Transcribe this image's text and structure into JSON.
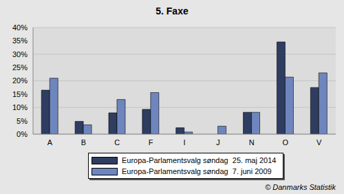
{
  "chart_data": {
    "type": "bar",
    "title": "5. Faxe",
    "categories": [
      "A",
      "B",
      "C",
      "F",
      "I",
      "J",
      "N",
      "O",
      "V"
    ],
    "series": [
      {
        "name": "Europa-Parlamentsvalg søndag  25. maj 2014",
        "color": "#2e3d60",
        "values": [
          16.5,
          4.8,
          8.0,
          9.3,
          2.4,
          null,
          8.2,
          34.6,
          17.5
        ]
      },
      {
        "name": "Europa-Parlamentsvalg søndag  7. juni 2009",
        "color": "#6e86bd",
        "values": [
          21.0,
          3.5,
          13.0,
          15.6,
          0.8,
          3.0,
          8.2,
          21.4,
          23.0
        ]
      }
    ],
    "ylim": [
      0,
      40
    ],
    "yticks": [
      {
        "value": 0,
        "label": "0%"
      },
      {
        "value": 5,
        "label": "5%"
      },
      {
        "value": 10,
        "label": "10%"
      },
      {
        "value": 15,
        "label": "15%"
      },
      {
        "value": 20,
        "label": "20%"
      },
      {
        "value": 25,
        "label": "25%"
      },
      {
        "value": 30,
        "label": "30%"
      },
      {
        "value": 35,
        "label": "35%"
      },
      {
        "value": 40,
        "label": "40%"
      }
    ],
    "grid": true,
    "legend": "bottom",
    "annotations": [
      "© Danmarks Statistik"
    ]
  }
}
